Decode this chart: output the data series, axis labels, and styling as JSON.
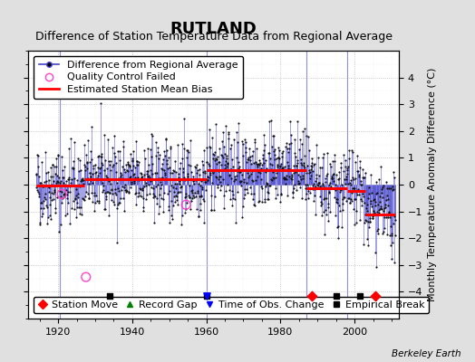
{
  "title": "RUTLAND",
  "subtitle": "Difference of Station Temperature Data from Regional Average",
  "ylabel": "Monthly Temperature Anomaly Difference (°C)",
  "xlabel_years": [
    1920,
    1940,
    1960,
    1980,
    2000
  ],
  "xlim": [
    1912,
    2012
  ],
  "ylim": [
    -5,
    5
  ],
  "yticks": [
    -4,
    -3,
    -2,
    -1,
    0,
    1,
    2,
    3,
    4
  ],
  "background_color": "#e0e0e0",
  "plot_bg_color": "#ffffff",
  "line_color": "#4444cc",
  "dot_color": "#111111",
  "bias_color": "#ff0000",
  "berkeley_earth_text": "Berkeley Earth",
  "seed": 42,
  "station_start": 1914,
  "station_end": 2011,
  "bias_segments": [
    {
      "start": 1914,
      "end": 1927,
      "value": -0.05
    },
    {
      "start": 1927,
      "end": 1960,
      "value": 0.2
    },
    {
      "start": 1960,
      "end": 1987,
      "value": 0.55
    },
    {
      "start": 1987,
      "end": 1998,
      "value": -0.15
    },
    {
      "start": 1998,
      "end": 2003,
      "value": -0.25
    },
    {
      "start": 2003,
      "end": 2011,
      "value": -1.1
    }
  ],
  "qc_failed": [
    {
      "year": 1921.0,
      "value": -0.35
    },
    {
      "year": 1927.5,
      "value": -3.45
    },
    {
      "year": 1954.5,
      "value": -0.75
    }
  ],
  "station_moves": [
    1988.5,
    2005.5
  ],
  "empirical_breaks": [
    1934.0,
    1960.0,
    1995.0,
    2001.5
  ],
  "time_of_obs_changes": [
    1960.0
  ],
  "vertical_lines": [
    1920.5,
    1960.0,
    1987.0,
    1998.0
  ],
  "marker_y": -4.15,
  "title_fontsize": 13,
  "subtitle_fontsize": 9,
  "label_fontsize": 8,
  "tick_fontsize": 8,
  "legend_fontsize": 8
}
